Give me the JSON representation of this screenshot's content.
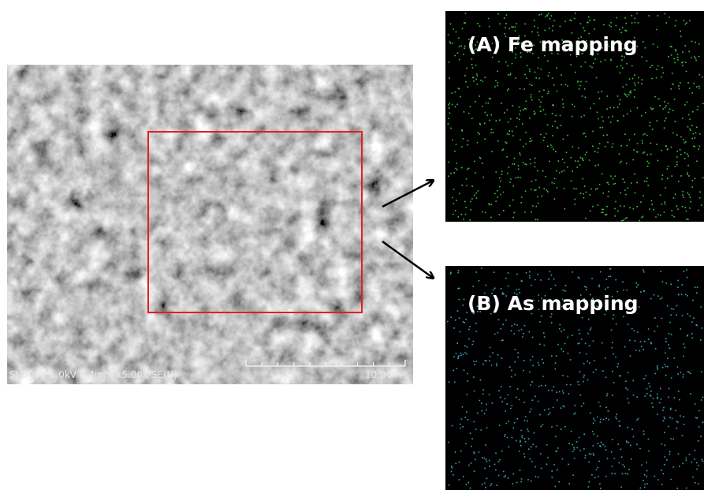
{
  "sem_image": {
    "caption": "SU8000 5.0kV 8.4mm x5.00k SE(U)",
    "scale_bar": "10.0um"
  },
  "panels": [
    {
      "label": "(A) Fe mapping"
    },
    {
      "label": "(B) As mapping"
    }
  ]
}
